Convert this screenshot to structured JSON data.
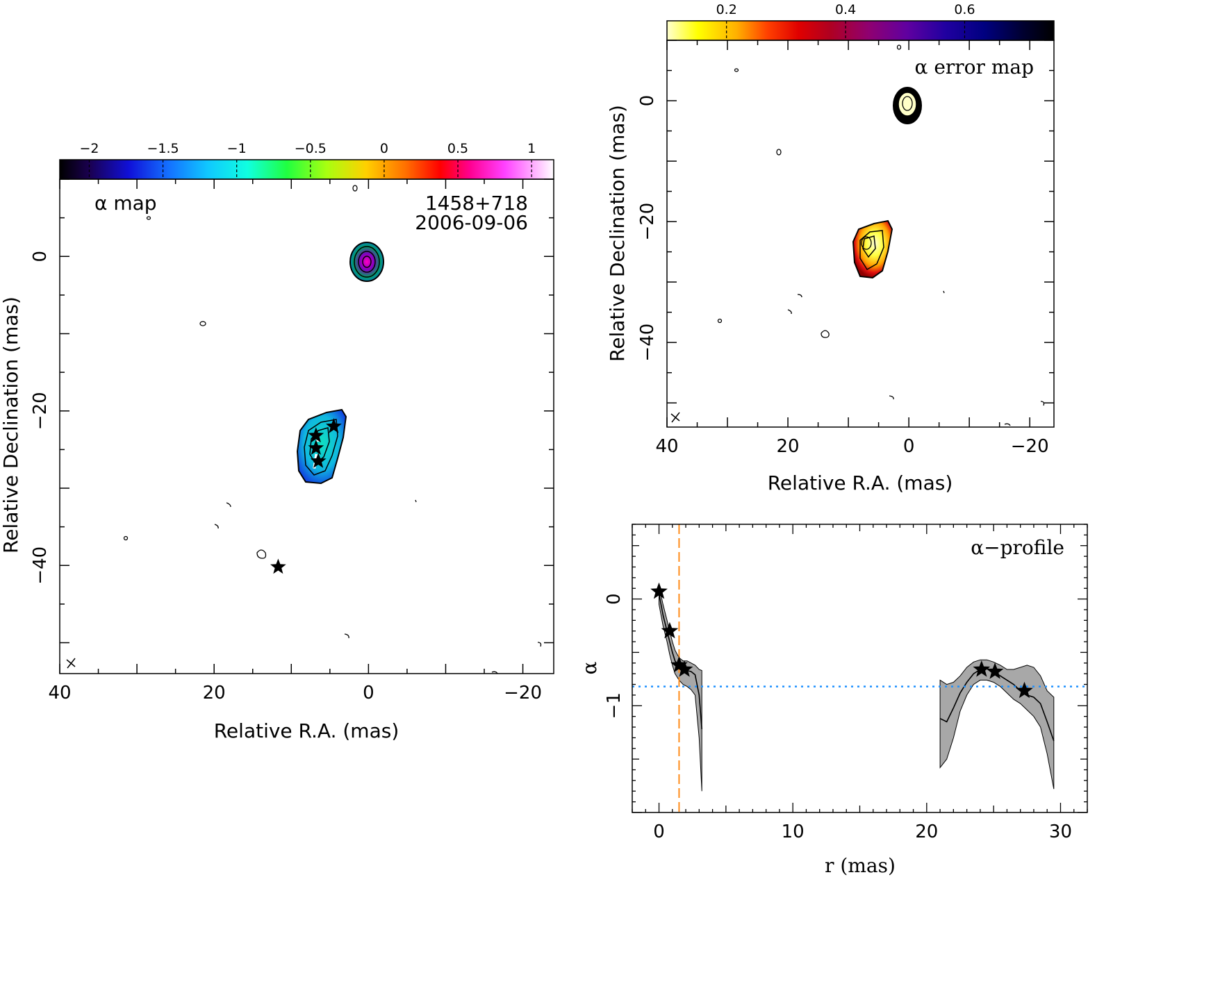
{
  "chart_data": [
    {
      "type": "heatmap",
      "panel": "alpha-map",
      "annotation": "α map",
      "source_name": "1458+718",
      "date": "2006-09-06",
      "xlabel": "Relative R.A. (mas)",
      "ylabel": "Relative Declination (mas)",
      "xlim": [
        40,
        -24
      ],
      "ylim": [
        -54,
        10
      ],
      "xticks": [
        {
          "v": 40,
          "label": "40"
        },
        {
          "v": 20,
          "label": "20"
        },
        {
          "v": 0,
          "label": "0"
        },
        {
          "v": -20,
          "label": "−20"
        }
      ],
      "yticks": [
        {
          "v": 0,
          "label": "0"
        },
        {
          "v": -20,
          "label": "−20"
        },
        {
          "v": -40,
          "label": "−40"
        }
      ],
      "colorbar": {
        "range": [
          -2.2,
          1.15
        ],
        "colormap": "spectral-rainbow",
        "ticks": [
          {
            "v": -2,
            "label": "−2"
          },
          {
            "v": -1.5,
            "label": "−1.5"
          },
          {
            "v": -1,
            "label": "−1"
          },
          {
            "v": -0.5,
            "label": "−0.5"
          },
          {
            "v": 0,
            "label": "0"
          },
          {
            "v": 0.5,
            "label": "0.5"
          },
          {
            "v": 1,
            "label": "1"
          }
        ]
      },
      "stars": [
        {
          "x": 6.8,
          "y": -23.2
        },
        {
          "x": 4.5,
          "y": -22.0
        },
        {
          "x": 6.8,
          "y": -24.8
        },
        {
          "x": 6.5,
          "y": -26.5
        },
        {
          "x": 11.7,
          "y": -40.2
        }
      ]
    },
    {
      "type": "heatmap",
      "panel": "alpha-error-map",
      "annotation": "α error map",
      "xlabel": "Relative R.A. (mas)",
      "ylabel": "Relative Declination (mas)",
      "xlim": [
        40,
        -24
      ],
      "ylim": [
        -54,
        10
      ],
      "xticks": [
        {
          "v": 40,
          "label": "40"
        },
        {
          "v": 20,
          "label": "20"
        },
        {
          "v": 0,
          "label": "0"
        },
        {
          "v": -20,
          "label": "−20"
        }
      ],
      "yticks": [
        {
          "v": 0,
          "label": "0"
        },
        {
          "v": -20,
          "label": "−20"
        },
        {
          "v": -40,
          "label": "−40"
        }
      ],
      "colorbar": {
        "range": [
          0.1,
          0.75
        ],
        "colormap": "yellow-red-purple-black",
        "ticks": [
          {
            "v": 0.2,
            "label": "0.2"
          },
          {
            "v": 0.4,
            "label": "0.4"
          },
          {
            "v": 0.6,
            "label": "0.6"
          }
        ]
      }
    },
    {
      "type": "line",
      "panel": "alpha-profile",
      "annotation": "α−profile",
      "xlabel": "r (mas)",
      "ylabel": "α",
      "xlim": [
        -2,
        32
      ],
      "ylim": [
        -2.0,
        0.7
      ],
      "xticks": [
        {
          "v": 0,
          "label": "0"
        },
        {
          "v": 10,
          "label": "10"
        },
        {
          "v": 20,
          "label": "20"
        },
        {
          "v": 30,
          "label": "30"
        }
      ],
      "yticks": [
        {
          "v": 0,
          "label": "0"
        },
        {
          "v": -1,
          "label": "−1"
        }
      ],
      "reference_lines": {
        "vertical_x": 1.5,
        "horizontal_y": -0.82
      },
      "series": [
        {
          "segment": 1,
          "x": [
            0.0,
            0.3,
            0.6,
            0.8,
            1.0,
            1.2,
            1.5,
            1.8,
            2.1,
            2.4,
            2.7,
            3.0,
            3.2
          ],
          "y": [
            0.05,
            -0.15,
            -0.3,
            -0.4,
            -0.5,
            -0.58,
            -0.63,
            -0.66,
            -0.67,
            -0.68,
            -0.71,
            -0.9,
            -1.22
          ],
          "lower": [
            -0.05,
            -0.25,
            -0.4,
            -0.52,
            -0.62,
            -0.7,
            -0.76,
            -0.8,
            -0.82,
            -0.85,
            -0.9,
            -1.3,
            -1.8
          ],
          "upper": [
            0.12,
            -0.05,
            -0.2,
            -0.3,
            -0.4,
            -0.48,
            -0.55,
            -0.58,
            -0.58,
            -0.6,
            -0.62,
            -0.66,
            -0.67
          ]
        },
        {
          "segment": 2,
          "x": [
            21.0,
            21.5,
            22.0,
            22.5,
            23.0,
            23.5,
            24.0,
            24.5,
            25.0,
            25.5,
            26.0,
            26.5,
            27.0,
            27.5,
            28.0,
            28.5,
            29.0,
            29.5
          ],
          "y": [
            -1.12,
            -1.15,
            -1.02,
            -0.88,
            -0.78,
            -0.7,
            -0.66,
            -0.65,
            -0.68,
            -0.72,
            -0.76,
            -0.8,
            -0.86,
            -0.9,
            -0.92,
            -0.98,
            -1.15,
            -1.33
          ],
          "lower": [
            -1.58,
            -1.5,
            -1.3,
            -1.05,
            -0.9,
            -0.8,
            -0.76,
            -0.76,
            -0.78,
            -0.82,
            -0.88,
            -0.94,
            -0.98,
            -1.04,
            -1.1,
            -1.2,
            -1.45,
            -1.78
          ],
          "upper": [
            -0.76,
            -0.8,
            -0.78,
            -0.72,
            -0.64,
            -0.59,
            -0.57,
            -0.57,
            -0.59,
            -0.62,
            -0.66,
            -0.66,
            -0.64,
            -0.62,
            -0.64,
            -0.72,
            -0.86,
            -0.92
          ]
        }
      ],
      "stars": [
        {
          "x": 0.0,
          "y": 0.07
        },
        {
          "x": 0.8,
          "y": -0.3
        },
        {
          "x": 1.5,
          "y": -0.62
        },
        {
          "x": 1.9,
          "y": -0.66
        },
        {
          "x": 24.1,
          "y": -0.66
        },
        {
          "x": 25.1,
          "y": -0.68
        },
        {
          "x": 27.3,
          "y": -0.86
        }
      ]
    }
  ]
}
